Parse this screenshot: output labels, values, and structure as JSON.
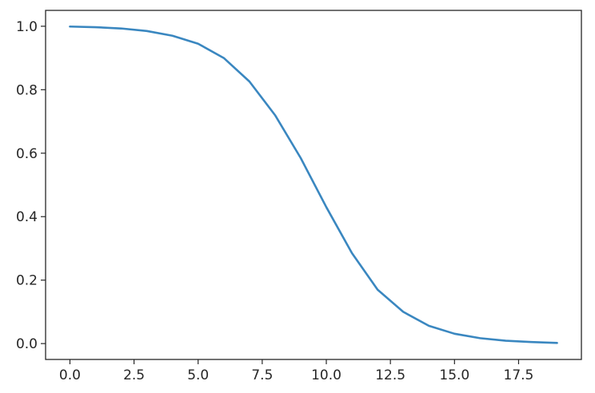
{
  "chart_data": {
    "type": "line",
    "title": "",
    "xlabel": "",
    "ylabel": "",
    "xlim": [
      -0.95,
      19.95
    ],
    "ylim": [
      -0.05,
      1.05
    ],
    "x_ticks": [
      0.0,
      2.5,
      5.0,
      7.5,
      10.0,
      12.5,
      15.0,
      17.5
    ],
    "x_tick_labels": [
      "0.0",
      "2.5",
      "5.0",
      "7.5",
      "10.0",
      "12.5",
      "15.0",
      "17.5"
    ],
    "y_ticks": [
      0.0,
      0.2,
      0.4,
      0.6,
      0.8,
      1.0
    ],
    "y_tick_labels": [
      "0.0",
      "0.2",
      "0.4",
      "0.6",
      "0.8",
      "1.0"
    ],
    "grid": false,
    "legend": "none",
    "series": [
      {
        "color": "#3a87c0",
        "x": [
          0,
          1,
          2,
          3,
          4,
          5,
          6,
          7,
          8,
          9,
          10,
          11,
          12,
          13,
          14,
          15,
          16,
          17,
          18,
          19
        ],
        "y": [
          0.999,
          0.997,
          0.993,
          0.985,
          0.97,
          0.945,
          0.9,
          0.826,
          0.72,
          0.585,
          0.43,
          0.285,
          0.17,
          0.1,
          0.056,
          0.031,
          0.017,
          0.009,
          0.005,
          0.002
        ]
      }
    ]
  }
}
